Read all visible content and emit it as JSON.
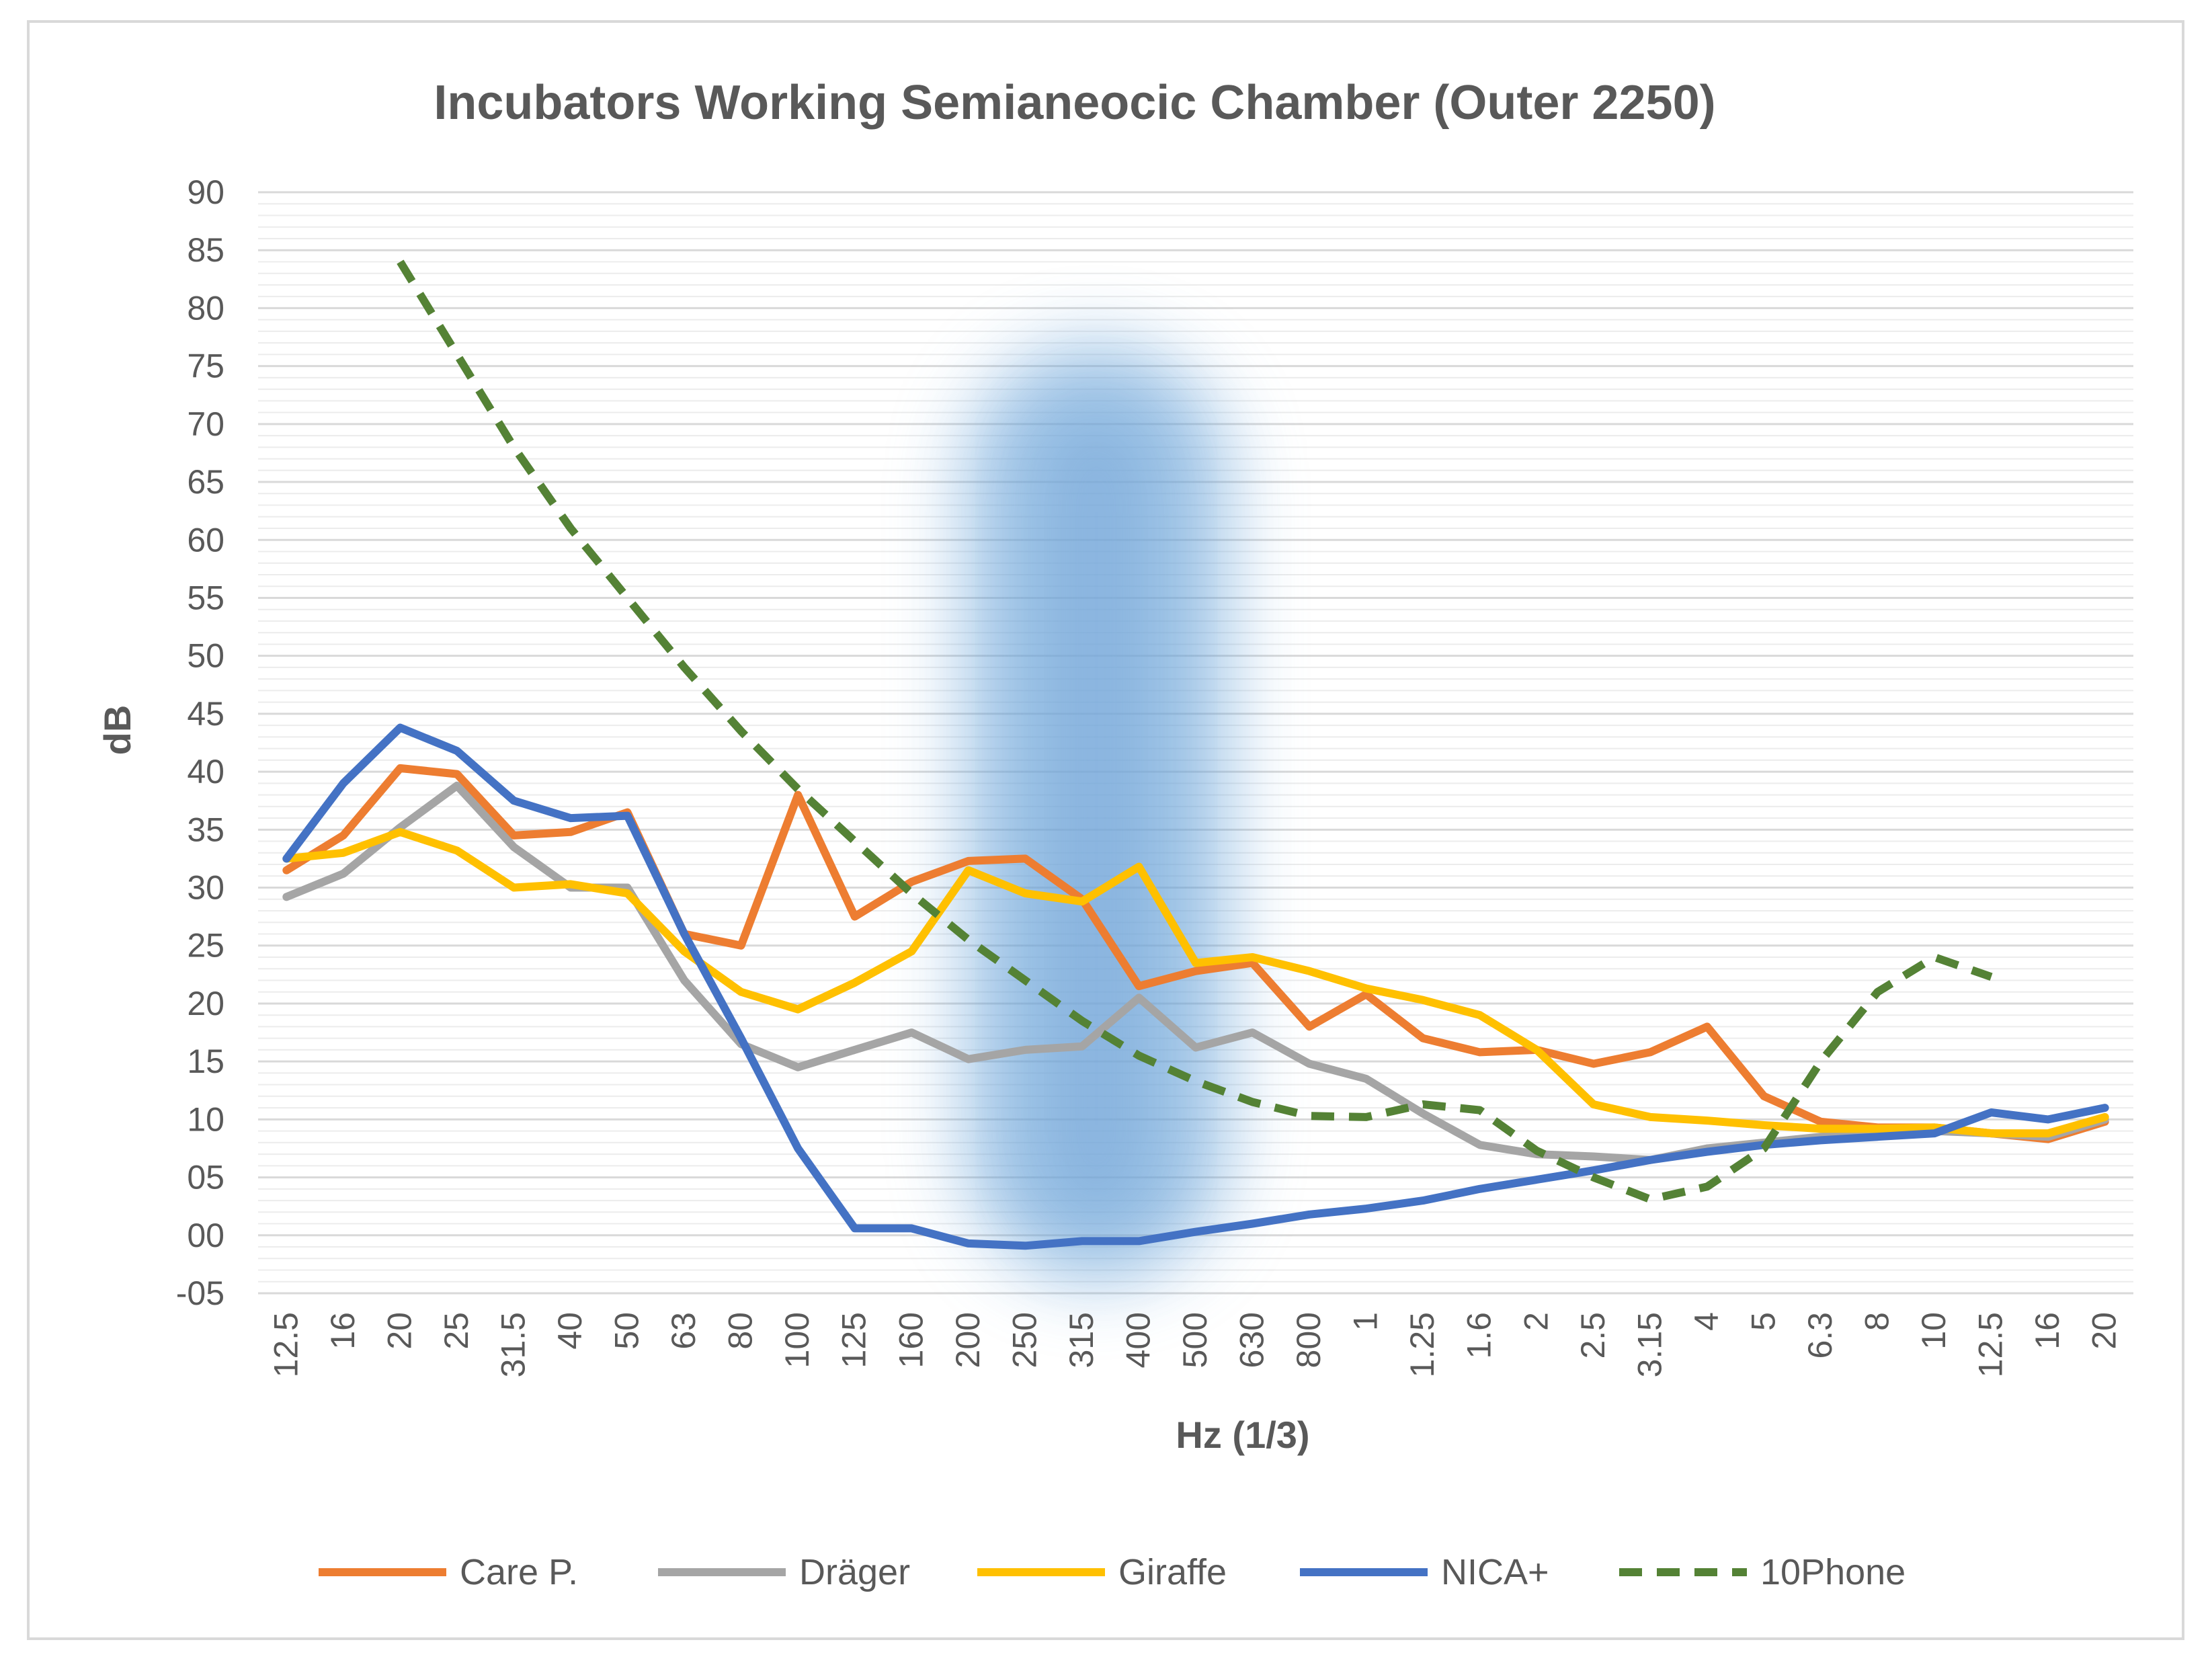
{
  "chart_data": {
    "type": "line",
    "title": "Incubators Working Semianeocic Chamber (Outer 2250)",
    "xlabel": "Hz (1/3)",
    "ylabel": "dB",
    "ylim": [
      -5,
      90
    ],
    "yticks": [
      "-05",
      "00",
      "05",
      "10",
      "15",
      "20",
      "25",
      "30",
      "35",
      "40",
      "45",
      "50",
      "55",
      "60",
      "65",
      "70",
      "75",
      "80",
      "85",
      "90"
    ],
    "ytick_values": [
      -5,
      0,
      5,
      10,
      15,
      20,
      25,
      30,
      35,
      40,
      45,
      50,
      55,
      60,
      65,
      70,
      75,
      80,
      85,
      90
    ],
    "minor_grid_step": 1,
    "categories": [
      "12.5",
      "16",
      "20",
      "25",
      "31.5",
      "40",
      "50",
      "63",
      "80",
      "100",
      "125",
      "160",
      "200",
      "250",
      "315",
      "400",
      "500",
      "630",
      "800",
      "1",
      "1.25",
      "1.6",
      "2",
      "2.5",
      "3.15",
      "4",
      "5",
      "6.3",
      "8",
      "10",
      "12.5",
      "16",
      "20"
    ],
    "highlight_band": {
      "from_category": "200",
      "to_category": "500",
      "color": "#5b9bd5"
    },
    "legend_position": "bottom",
    "series": [
      {
        "name": "Care P.",
        "color": "#ed7d31",
        "dash": "solid",
        "values": [
          31.5,
          34.5,
          40.3,
          39.8,
          34.5,
          34.8,
          36.5,
          26,
          25,
          38,
          27.5,
          30.5,
          32.3,
          32.5,
          29,
          21.5,
          22.8,
          23.5,
          18,
          20.8,
          17,
          15.8,
          16,
          14.8,
          15.8,
          18,
          12,
          9.8,
          9.3,
          9.3,
          8.8,
          8.3,
          9.8
        ]
      },
      {
        "name": "Dräger",
        "color": "#a5a5a5",
        "dash": "solid",
        "values": [
          29.2,
          31.2,
          35.2,
          38.8,
          33.5,
          30,
          30,
          22,
          16.5,
          14.5,
          16,
          17.5,
          15.2,
          16,
          16.3,
          20.5,
          16.2,
          17.5,
          14.8,
          13.5,
          10.5,
          7.8,
          7,
          6.8,
          6.5,
          7.5,
          8,
          8.5,
          8.8,
          9,
          8.8,
          8.5,
          10
        ]
      },
      {
        "name": "Giraffe",
        "color": "#ffc000",
        "dash": "solid",
        "values": [
          32.5,
          33,
          34.8,
          33.2,
          30,
          30.3,
          29.5,
          24.5,
          21,
          19.5,
          21.8,
          24.5,
          31.5,
          29.5,
          28.8,
          31.8,
          23.5,
          24,
          22.8,
          21.3,
          20.3,
          19,
          16,
          11.3,
          10.2,
          9.9,
          9.5,
          9.2,
          9.2,
          9.3,
          8.8,
          8.8,
          10.2
        ]
      },
      {
        "name": "NICA+",
        "color": "#4472c4",
        "dash": "solid",
        "values": [
          32.5,
          39,
          43.8,
          41.8,
          37.5,
          36,
          36.2,
          26,
          17,
          7.5,
          0.6,
          0.6,
          -0.7,
          -0.9,
          -0.5,
          -0.5,
          0.3,
          1,
          1.8,
          2.3,
          3,
          4,
          4.8,
          5.6,
          6.5,
          7.2,
          7.8,
          8.2,
          8.5,
          8.8,
          10.6,
          10,
          11
        ]
      },
      {
        "name": "10Phone",
        "color": "#548235",
        "dash": "dashed",
        "values": [
          null,
          null,
          84,
          76,
          68,
          61,
          55,
          49,
          43.5,
          38.5,
          34,
          29.5,
          25.5,
          22,
          18.5,
          15.5,
          13.3,
          11.5,
          10.3,
          10.2,
          11.3,
          10.8,
          7.3,
          5,
          3.1,
          4.2,
          7.5,
          15,
          21,
          24,
          22.3,
          null,
          null
        ]
      }
    ]
  }
}
